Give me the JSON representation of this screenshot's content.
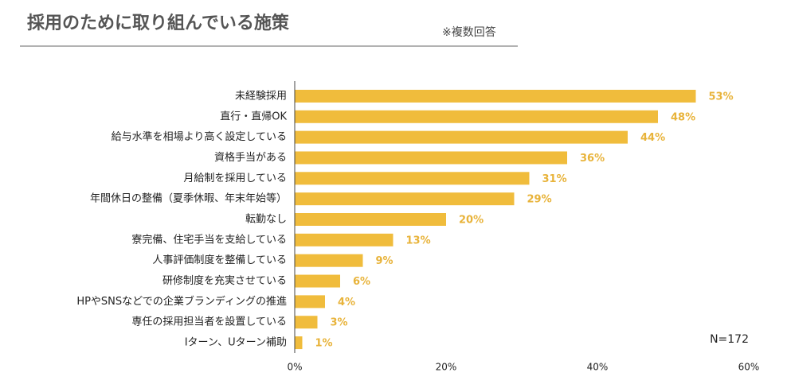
{
  "chart_data": {
    "type": "bar",
    "orientation": "horizontal",
    "title": "採用のために取り組んでいる施策",
    "subtitle": "※複数回答",
    "annotation": "N=172",
    "categories": [
      "未経験採用",
      "直行・直帰OK",
      "給与水準を相場より高く設定している",
      "資格手当がある",
      "月給制を採用している",
      "年間休日の整備（夏季休暇、年末年始等）",
      "転勤なし",
      "寮完備、住宅手当を支給している",
      "人事評価制度を整備している",
      "研修制度を充実させている",
      "HPやSNSなどでの企業ブランディングの推進",
      "専任の採用担当者を設置している",
      "Iターン、Uターン補助"
    ],
    "values": [
      53,
      48,
      44,
      36,
      31,
      29,
      20,
      13,
      9,
      6,
      4,
      3,
      1
    ],
    "value_labels": [
      "53%",
      "48%",
      "44%",
      "36%",
      "31%",
      "29%",
      "20%",
      "13%",
      "9%",
      "6%",
      "4%",
      "3%",
      "1%"
    ],
    "color": "#f0bc3c",
    "xlim": [
      0,
      60
    ],
    "xticks": [
      {
        "value": 0,
        "label": "0%"
      },
      {
        "value": 20,
        "label": "20%"
      },
      {
        "value": 40,
        "label": "40%"
      },
      {
        "value": 60,
        "label": "60%"
      }
    ],
    "grid": false
  }
}
